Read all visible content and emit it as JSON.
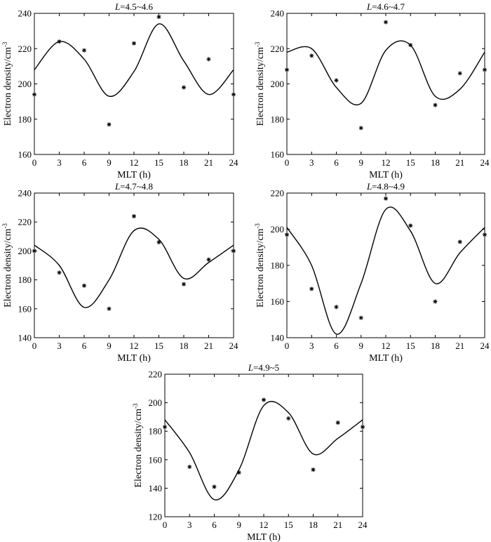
{
  "chart_data": [
    {
      "type": "scatter",
      "title_italic": "L",
      "title_rest": "=4.5~4.6",
      "xlabel": "MLT (h)",
      "ylabel_main": "Electron density/cm",
      "ylabel_sup": "-3",
      "xlim": [
        0,
        24
      ],
      "ylim": [
        160,
        240
      ],
      "xticks": [
        0,
        3,
        6,
        9,
        12,
        15,
        18,
        21,
        24
      ],
      "yticks": [
        160,
        180,
        200,
        220,
        240
      ],
      "series": [
        {
          "type": "scatter",
          "marker": "*",
          "x": [
            0,
            3,
            6,
            9,
            12,
            15,
            18,
            21,
            24
          ],
          "y": [
            194,
            224,
            219,
            177,
            223,
            238,
            198,
            214,
            194
          ]
        },
        {
          "type": "line",
          "x": [
            0,
            3,
            6,
            9,
            12,
            15,
            18,
            21,
            24
          ],
          "y": [
            208,
            224,
            214,
            193,
            207,
            234,
            213,
            194,
            208
          ]
        }
      ]
    },
    {
      "type": "scatter",
      "title_italic": "L",
      "title_rest": "=4.6~4.7",
      "xlabel": "MLT (h)",
      "ylabel_main": "Electron density/cm",
      "ylabel_sup": "-3",
      "xlim": [
        0,
        24
      ],
      "ylim": [
        160,
        240
      ],
      "xticks": [
        0,
        3,
        6,
        9,
        12,
        15,
        18,
        21,
        24
      ],
      "yticks": [
        160,
        180,
        200,
        220,
        240
      ],
      "series": [
        {
          "type": "scatter",
          "marker": "*",
          "x": [
            0,
            3,
            6,
            9,
            12,
            15,
            18,
            21,
            24
          ],
          "y": [
            208,
            216,
            202,
            175,
            235,
            222,
            188,
            206,
            208
          ]
        },
        {
          "type": "line",
          "x": [
            0,
            3,
            6,
            9,
            12,
            15,
            18,
            21,
            24
          ],
          "y": [
            218,
            220,
            198,
            189,
            219,
            222,
            193,
            197,
            218
          ]
        }
      ]
    },
    {
      "type": "scatter",
      "title_italic": "L",
      "title_rest": "=4.7~4.8",
      "xlabel": "MLT (h)",
      "ylabel_main": "Electron density/cm",
      "ylabel_sup": "-3",
      "xlim": [
        0,
        24
      ],
      "ylim": [
        140,
        240
      ],
      "xticks": [
        0,
        3,
        6,
        9,
        12,
        15,
        18,
        21,
        24
      ],
      "yticks": [
        140,
        160,
        180,
        200,
        220,
        240
      ],
      "series": [
        {
          "type": "scatter",
          "marker": "*",
          "x": [
            0,
            3,
            6,
            9,
            12,
            15,
            18,
            21,
            24
          ],
          "y": [
            200,
            185,
            176,
            160,
            224,
            206,
            177,
            194,
            200
          ]
        },
        {
          "type": "line",
          "x": [
            0,
            3,
            6,
            9,
            12,
            15,
            18,
            21,
            24
          ],
          "y": [
            204,
            190,
            161,
            180,
            214,
            208,
            181,
            192,
            204
          ]
        }
      ]
    },
    {
      "type": "scatter",
      "title_italic": "L",
      "title_rest": "=4.8~4.9",
      "xlabel": "MLT (h)",
      "ylabel_main": "Electron density/cm",
      "ylabel_sup": "-3",
      "xlim": [
        0,
        24
      ],
      "ylim": [
        140,
        220
      ],
      "xticks": [
        0,
        3,
        6,
        9,
        12,
        15,
        18,
        21,
        24
      ],
      "yticks": [
        140,
        160,
        180,
        200,
        220
      ],
      "series": [
        {
          "type": "scatter",
          "marker": "*",
          "x": [
            0,
            3,
            6,
            9,
            12,
            15,
            18,
            21,
            24
          ],
          "y": [
            197,
            167,
            157,
            151,
            217,
            202,
            160,
            193,
            197
          ]
        },
        {
          "type": "line",
          "x": [
            0,
            3,
            6,
            9,
            12,
            15,
            18,
            21,
            24
          ],
          "y": [
            201,
            180,
            142,
            170,
            211,
            199,
            170,
            187,
            201
          ]
        }
      ]
    },
    {
      "type": "scatter",
      "title_italic": "L",
      "title_rest": "=4.9~5",
      "xlabel": "MLT (h)",
      "ylabel_main": "Electron density/cm",
      "ylabel_sup": "-3",
      "xlim": [
        0,
        24
      ],
      "ylim": [
        120,
        220
      ],
      "xticks": [
        0,
        3,
        6,
        9,
        12,
        15,
        18,
        21,
        24
      ],
      "yticks": [
        120,
        140,
        160,
        180,
        200,
        220
      ],
      "series": [
        {
          "type": "scatter",
          "marker": "*",
          "x": [
            0,
            3,
            6,
            9,
            12,
            15,
            18,
            21,
            24
          ],
          "y": [
            183,
            155,
            141,
            151,
            202,
            189,
            153,
            186,
            183
          ]
        },
        {
          "type": "line",
          "x": [
            0,
            3,
            6,
            9,
            12,
            15,
            18,
            21,
            24
          ],
          "y": [
            188,
            165,
            132,
            153,
            198,
            193,
            164,
            175,
            188
          ]
        }
      ]
    }
  ]
}
